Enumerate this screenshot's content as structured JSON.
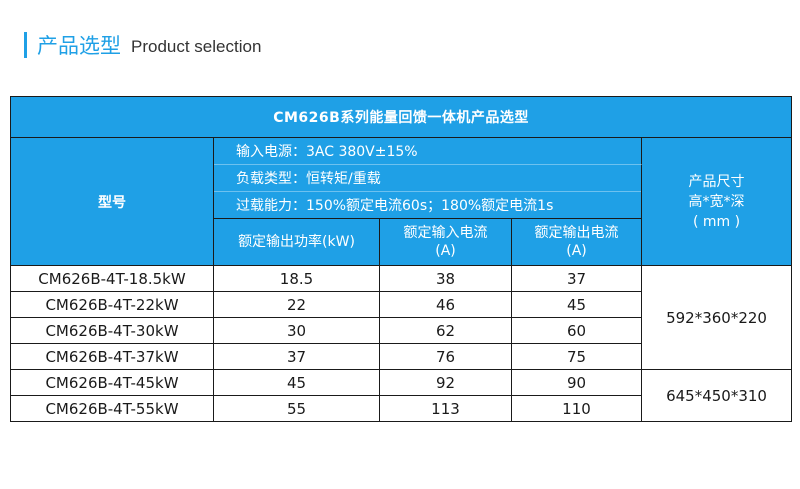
{
  "header": {
    "title_zh": "产品选型",
    "title_en": "Product selection"
  },
  "table": {
    "title": "CM626B系列能量回馈一体机产品选型",
    "model_header": "型号",
    "specs": [
      "输入电源：3AC 380V±15%",
      "负载类型：恒转矩/重载",
      "过载能力：150%额定电流60s；180%额定电流1s"
    ],
    "columns": [
      {
        "line1": "额定输出功率(kW)",
        "line2": ""
      },
      {
        "line1": "额定输入电流",
        "line2": "(A)"
      },
      {
        "line1": "额定输出电流",
        "line2": "(A)"
      }
    ],
    "size_header": {
      "line1": "产品尺寸",
      "line2": "高*宽*深",
      "line3": "( mm )"
    },
    "rows": [
      {
        "model": "CM626B-4T-18.5kW",
        "power": "18.5",
        "in_current": "38",
        "out_current": "37"
      },
      {
        "model": "CM626B-4T-22kW",
        "power": "22",
        "in_current": "46",
        "out_current": "45"
      },
      {
        "model": "CM626B-4T-30kW",
        "power": "30",
        "in_current": "62",
        "out_current": "60"
      },
      {
        "model": "CM626B-4T-37kW",
        "power": "37",
        "in_current": "76",
        "out_current": "75"
      },
      {
        "model": "CM626B-4T-45kW",
        "power": "45",
        "in_current": "92",
        "out_current": "90"
      },
      {
        "model": "CM626B-4T-55kW",
        "power": "55",
        "in_current": "113",
        "out_current": "110"
      }
    ],
    "sizes": [
      "592*360*220",
      "645*450*310"
    ]
  },
  "colors": {
    "accent": "#1fa0e6",
    "border": "#1a1a1a"
  }
}
